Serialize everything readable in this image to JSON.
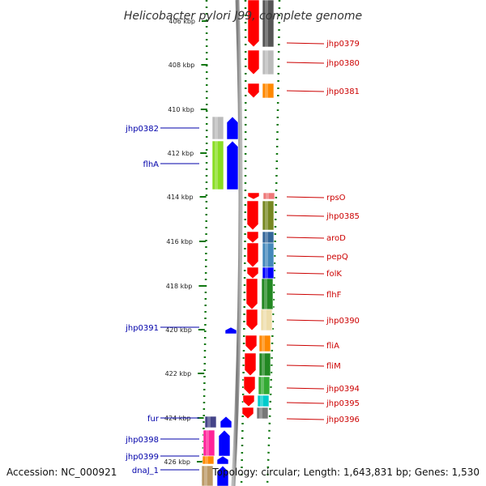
{
  "title": "Helicobacter pylori J99, complete genome",
  "footer": {
    "accession": "Accession: NC_000921",
    "summary": "Topology: circular; Length: 1,643,831 bp; Genes: 1,530"
  },
  "ticks": [
    "406 kbp",
    "408 kbp",
    "410 kbp",
    "412 kbp",
    "414 kbp",
    "416 kbp",
    "418 kbp",
    "420 kbp",
    "422 kbp",
    "424 kbp",
    "426 kbp"
  ],
  "colors": {
    "forward_arrow": "#ff0000",
    "reverse_arrow": "#0000ff",
    "backbone": "#888888",
    "ruler": "#117711"
  },
  "genes": [
    {
      "name": "jhp0379",
      "strand": "+",
      "color": "#555555"
    },
    {
      "name": "jhp0380",
      "strand": "+",
      "color": "#bbbbbb"
    },
    {
      "name": "jhp0381",
      "strand": "+",
      "color": "#ff8800"
    },
    {
      "name": "jhp0382",
      "strand": "-",
      "color": "#bbbbbb"
    },
    {
      "name": "flhA",
      "strand": "-",
      "color": "#88dd22"
    },
    {
      "name": "rpsO",
      "strand": "+",
      "color": "#ee7777"
    },
    {
      "name": "jhp0385",
      "strand": "+",
      "color": "#778822"
    },
    {
      "name": "aroD",
      "strand": "+",
      "color": "#336699"
    },
    {
      "name": "pepQ",
      "strand": "+",
      "color": "#4488bb"
    },
    {
      "name": "folK",
      "strand": "+",
      "color": "#0000ff"
    },
    {
      "name": "flhF",
      "strand": "+",
      "color": "#228822"
    },
    {
      "name": "jhp0390",
      "strand": "+",
      "color": "#eeddaa"
    },
    {
      "name": "jhp0391",
      "strand": "-",
      "color": "#0000ff"
    },
    {
      "name": "fliA",
      "strand": "+",
      "color": "#ff8800"
    },
    {
      "name": "fliM",
      "strand": "+",
      "color": "#228822"
    },
    {
      "name": "jhp0394",
      "strand": "+",
      "color": "#33aa33"
    },
    {
      "name": "jhp0395",
      "strand": "+",
      "color": "#00cccc"
    },
    {
      "name": "jhp0396",
      "strand": "+",
      "color": "#777777"
    },
    {
      "name": "fur",
      "strand": "-",
      "color": "#444488"
    },
    {
      "name": "jhp0398",
      "strand": "-",
      "color": "#ff2299"
    },
    {
      "name": "jhp0399",
      "strand": "-",
      "color": "#ff8800"
    },
    {
      "name": "dnaJ_1",
      "strand": "-",
      "color": "#bb9966"
    }
  ]
}
